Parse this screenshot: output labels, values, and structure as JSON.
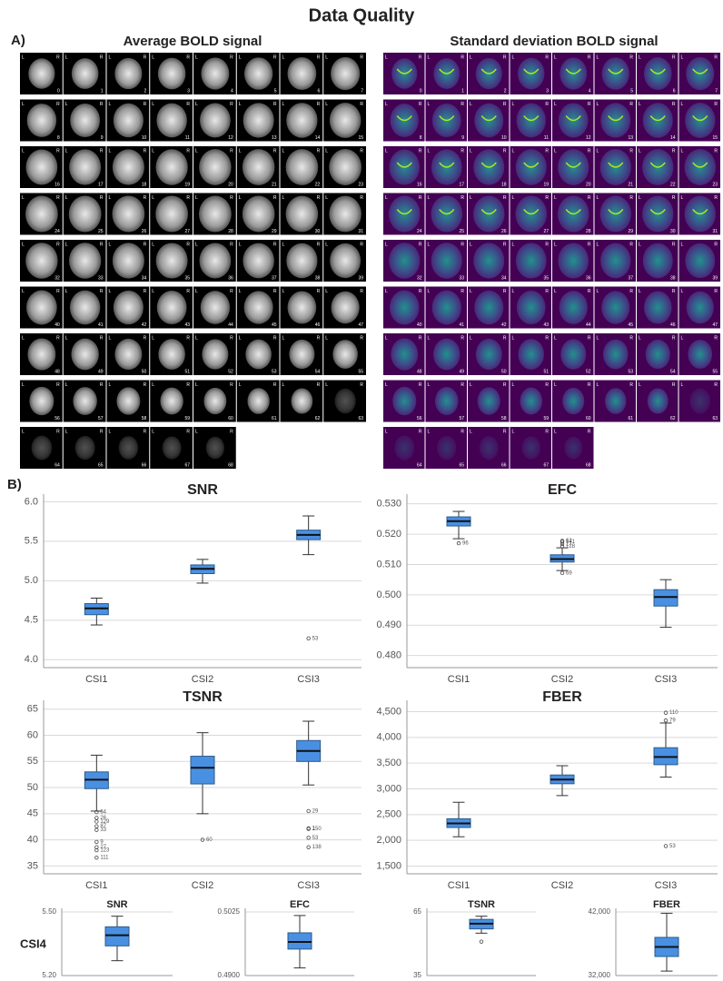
{
  "title": "Data Quality",
  "panel_a": {
    "label": "A)",
    "orientation": [
      "L",
      "R"
    ],
    "panels": [
      {
        "title": "Average BOLD signal",
        "slices": [
          0,
          1,
          2,
          3,
          4,
          5,
          6,
          7,
          8,
          9,
          10,
          11,
          12,
          13,
          14,
          15,
          16,
          17,
          18,
          19,
          20,
          21,
          22,
          23,
          24,
          25,
          26,
          27,
          28,
          29,
          30,
          31,
          32,
          33,
          34,
          35,
          36,
          37,
          38,
          39,
          40,
          41,
          42,
          43,
          44,
          45,
          46,
          47,
          48,
          49,
          50,
          51,
          52,
          53,
          54,
          55,
          56,
          57,
          58,
          59,
          60,
          61,
          62,
          63,
          64,
          65,
          66,
          67,
          68
        ]
      },
      {
        "title": "Standard deviation BOLD signal",
        "slices": [
          0,
          1,
          2,
          3,
          4,
          5,
          6,
          7,
          8,
          9,
          10,
          11,
          12,
          13,
          14,
          15,
          16,
          17,
          18,
          19,
          20,
          21,
          22,
          23,
          24,
          25,
          26,
          27,
          28,
          29,
          30,
          31,
          32,
          33,
          34,
          35,
          36,
          37,
          38,
          39,
          40,
          41,
          42,
          43,
          44,
          45,
          46,
          47,
          48,
          49,
          50,
          51,
          52,
          53,
          54,
          55,
          56,
          57,
          58,
          59,
          60,
          61,
          62,
          63,
          64,
          65,
          66,
          67,
          68
        ]
      }
    ]
  },
  "panel_b": {
    "label": "B)",
    "row_label": "CSI4"
  },
  "chart_data": [
    {
      "type": "box",
      "title": "SNR",
      "categories": [
        "CSI1",
        "CSI2",
        "CSI3"
      ],
      "color": "#4a90e2",
      "grid": true,
      "ylim": [
        3.9,
        6.05
      ],
      "yticks": [
        {
          "value": 4,
          "label": "4.0"
        },
        {
          "value": 4.5,
          "label": "4.5"
        },
        {
          "value": 5,
          "label": "5.0"
        },
        {
          "value": 5.5,
          "label": "5.5"
        },
        {
          "value": 6,
          "label": "6.0"
        }
      ],
      "boxes": [
        {
          "min": 4.44,
          "q1": 4.57,
          "median": 4.65,
          "q3": 4.71,
          "max": 4.78,
          "outliers": []
        },
        {
          "min": 4.97,
          "q1": 5.09,
          "median": 5.15,
          "q3": 5.2,
          "max": 5.27,
          "outliers": []
        },
        {
          "min": 5.33,
          "q1": 5.52,
          "median": 5.58,
          "q3": 5.64,
          "max": 5.82,
          "outliers": [
            {
              "value": 4.27,
              "label": "53"
            }
          ]
        }
      ]
    },
    {
      "type": "box",
      "title": "EFC",
      "categories": [
        "CSI1",
        "CSI2",
        "CSI3"
      ],
      "color": "#4a90e2",
      "grid": true,
      "ylim": [
        0.476,
        0.532
      ],
      "yticks": [
        {
          "value": 0.48,
          "label": "0.480"
        },
        {
          "value": 0.49,
          "label": "0.490"
        },
        {
          "value": 0.5,
          "label": "0.500"
        },
        {
          "value": 0.51,
          "label": "0.510"
        },
        {
          "value": 0.52,
          "label": "0.520"
        },
        {
          "value": 0.53,
          "label": "0.530"
        }
      ],
      "boxes": [
        {
          "min": 0.5185,
          "q1": 0.5227,
          "median": 0.5243,
          "q3": 0.5257,
          "max": 0.5275,
          "outliers": [
            {
              "value": 0.517,
              "label": "96"
            }
          ]
        },
        {
          "min": 0.508,
          "q1": 0.5108,
          "median": 0.5118,
          "q3": 0.5132,
          "max": 0.5155,
          "outliers": [
            {
              "value": 0.5178,
              "label": "62"
            },
            {
              "value": 0.5175,
              "label": "141"
            },
            {
              "value": 0.5168,
              "label": "17"
            },
            {
              "value": 0.516,
              "label": "128"
            },
            {
              "value": 0.5072,
              "label": "69"
            }
          ]
        },
        {
          "min": 0.4893,
          "q1": 0.4963,
          "median": 0.4993,
          "q3": 0.5017,
          "max": 0.505,
          "outliers": []
        }
      ]
    },
    {
      "type": "box",
      "title": "TSNR",
      "categories": [
        "CSI1",
        "CSI2",
        "CSI3"
      ],
      "color": "#4a90e2",
      "grid": true,
      "ylim": [
        33.5,
        66
      ],
      "yticks": [
        35,
        40,
        45,
        50,
        55,
        60,
        65
      ],
      "boxes": [
        {
          "min": 45.5,
          "q1": 49.8,
          "median": 51.5,
          "q3": 53,
          "max": 56.2,
          "outliers": [
            {
              "value": 45.3,
              "label": "64"
            },
            {
              "value": 44.2,
              "label": "26"
            },
            {
              "value": 43.5,
              "label": "129"
            },
            {
              "value": 42.6,
              "label": "87"
            },
            {
              "value": 41.9,
              "label": "33"
            },
            {
              "value": 39.6,
              "label": "9"
            },
            {
              "value": 38.6,
              "label": "27"
            },
            {
              "value": 38,
              "label": "123"
            },
            {
              "value": 36.6,
              "label": "111"
            }
          ]
        },
        {
          "min": 45,
          "q1": 50.7,
          "median": 53.8,
          "q3": 56,
          "max": 60.5,
          "outliers": [
            {
              "value": 40,
              "label": "60"
            }
          ]
        },
        {
          "min": 50.5,
          "q1": 55,
          "median": 57,
          "q3": 59,
          "max": 62.7,
          "outliers": [
            {
              "value": 45.5,
              "label": "29"
            },
            {
              "value": 42.1,
              "label": "150"
            },
            {
              "value": 42.2,
              "label": "1"
            },
            {
              "value": 40.4,
              "label": "53"
            },
            {
              "value": 38.6,
              "label": "138"
            }
          ]
        }
      ]
    },
    {
      "type": "box",
      "title": "FBER",
      "categories": [
        "CSI1",
        "CSI2",
        "CSI3"
      ],
      "color": "#4a90e2",
      "grid": true,
      "ylim": [
        1350,
        4650
      ],
      "yticks": [
        {
          "value": 1500,
          "label": "1,500"
        },
        {
          "value": 2000,
          "label": "2,000"
        },
        {
          "value": 2500,
          "label": "2,500"
        },
        {
          "value": 3000,
          "label": "3,000"
        },
        {
          "value": 3500,
          "label": "3,500"
        },
        {
          "value": 4000,
          "label": "4,000"
        },
        {
          "value": 4500,
          "label": "4,500"
        }
      ],
      "boxes": [
        {
          "min": 2070,
          "q1": 2250,
          "median": 2330,
          "q3": 2420,
          "max": 2740,
          "outliers": []
        },
        {
          "min": 2870,
          "q1": 3100,
          "median": 3180,
          "q3": 3270,
          "max": 3450,
          "outliers": []
        },
        {
          "min": 3230,
          "q1": 3470,
          "median": 3620,
          "q3": 3800,
          "max": 4280,
          "outliers": [
            {
              "value": 4480,
              "label": "110"
            },
            {
              "value": 4330,
              "label": "79"
            },
            {
              "value": 1890,
              "label": "53"
            }
          ]
        }
      ]
    },
    {
      "type": "box",
      "title": "SNR",
      "color": "#4a90e2",
      "grid": true,
      "ylim": [
        5.2,
        5.5
      ],
      "yticks": [
        {
          "value": 5.2,
          "label": "5.20"
        },
        {
          "value": 5.5,
          "label": "5.50"
        }
      ],
      "boxes": [
        {
          "min": 5.27,
          "q1": 5.34,
          "median": 5.39,
          "q3": 5.43,
          "max": 5.48,
          "outliers": []
        }
      ]
    },
    {
      "type": "box",
      "title": "EFC",
      "color": "#4a90e2",
      "grid": true,
      "ylim": [
        0.49,
        0.5025
      ],
      "yticks": [
        {
          "value": 0.49,
          "label": "0.4900"
        },
        {
          "value": 0.5025,
          "label": "0.5025"
        }
      ],
      "boxes": [
        {
          "min": 0.4915,
          "q1": 0.4952,
          "median": 0.4966,
          "q3": 0.4984,
          "max": 0.5018,
          "outliers": []
        }
      ]
    },
    {
      "type": "box",
      "title": "TSNR",
      "color": "#4a90e2",
      "grid": true,
      "ylim": [
        35,
        65
      ],
      "yticks": [
        35,
        65
      ],
      "boxes": [
        {
          "min": 55,
          "q1": 57,
          "median": 59.5,
          "q3": 61.5,
          "max": 63,
          "outliers": [
            {
              "value": 51,
              "label": ""
            }
          ]
        }
      ]
    },
    {
      "type": "box",
      "title": "FBER",
      "color": "#4a90e2",
      "grid": true,
      "ylim": [
        32000,
        42000
      ],
      "yticks": [
        {
          "value": 32000,
          "label": "32,000"
        },
        {
          "value": 42000,
          "label": "42,000"
        }
      ],
      "boxes": [
        {
          "min": 32700,
          "q1": 35000,
          "median": 36500,
          "q3": 38000,
          "max": 41800,
          "outliers": []
        }
      ]
    }
  ]
}
